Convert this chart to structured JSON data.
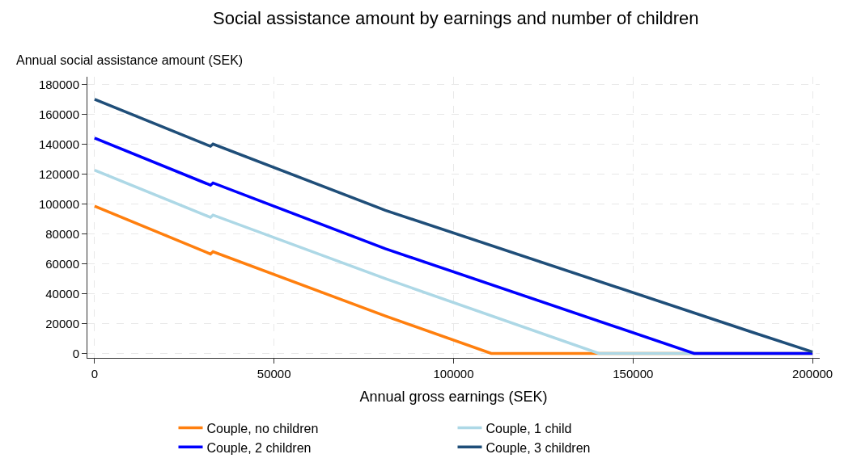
{
  "chart_data": {
    "type": "line",
    "title": "Social assistance amount by earnings and number of children",
    "xlabel": "Annual gross earnings (SEK)",
    "ylabel": "Annual social assistance amount (SEK)",
    "xlim": [
      -2000,
      202000
    ],
    "xticks": [
      0,
      50000,
      100000,
      150000,
      200000
    ],
    "ylim": [
      -3000,
      185000
    ],
    "yticks": [
      0,
      20000,
      40000,
      60000,
      80000,
      100000,
      120000,
      140000,
      160000,
      180000
    ],
    "grid": true,
    "legend": "bottom",
    "line_style": "solid",
    "marker": "none",
    "series": [
      {
        "name": "Couple, no children",
        "color": "#ff7f0e",
        "x": [
          0,
          32300,
          33000,
          81000,
          110500,
          200000
        ],
        "values": [
          98500,
          66500,
          68000,
          25000,
          0,
          0
        ]
      },
      {
        "name": "Couple, 1 child",
        "color": "#add8e6",
        "x": [
          0,
          32300,
          33000,
          81000,
          140500,
          200000
        ],
        "values": [
          122500,
          91000,
          92500,
          50000,
          0,
          0
        ]
      },
      {
        "name": "Couple, 2 children",
        "color": "#0000ff",
        "x": [
          0,
          32300,
          33000,
          81000,
          167000,
          200000
        ],
        "values": [
          144000,
          112500,
          114000,
          70000,
          0,
          0
        ]
      },
      {
        "name": "Couple, 3 children",
        "color": "#1f4e79",
        "x": [
          0,
          32300,
          33000,
          81000,
          183400,
          200000
        ],
        "values": [
          170000,
          138500,
          140000,
          95700,
          14000,
          1000
        ]
      }
    ]
  }
}
